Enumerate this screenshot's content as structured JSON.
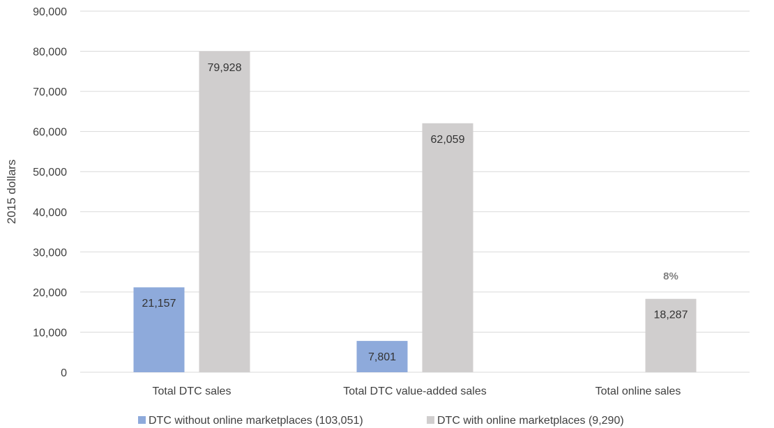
{
  "chart_data": {
    "type": "bar",
    "categories": [
      "Total DTC sales",
      "Total DTC value-added sales",
      "Total online sales"
    ],
    "series": [
      {
        "name": "DTC without online marketplaces (103,051)",
        "color": "#8eaadb",
        "values": [
          21157,
          7801,
          null
        ],
        "labels": [
          "21,157",
          "7,801",
          ""
        ]
      },
      {
        "name": "DTC with online marketplaces (9,290)",
        "color": "#d0cece",
        "values": [
          79928,
          62059,
          18287
        ],
        "labels": [
          "79,928",
          "62,059",
          "18,287"
        ]
      }
    ],
    "ylabel": "2015 dollars",
    "ylim": [
      0,
      90000
    ],
    "yticks": [
      0,
      10000,
      20000,
      30000,
      40000,
      50000,
      60000,
      70000,
      80000,
      90000
    ],
    "ytick_labels": [
      "0",
      "10,000",
      "20,000",
      "30,000",
      "40,000",
      "50,000",
      "60,000",
      "70,000",
      "80,000",
      "90,000"
    ],
    "annotation": {
      "text": "8%",
      "category": "Total online sales"
    },
    "grid": true,
    "legend_position": "bottom"
  }
}
